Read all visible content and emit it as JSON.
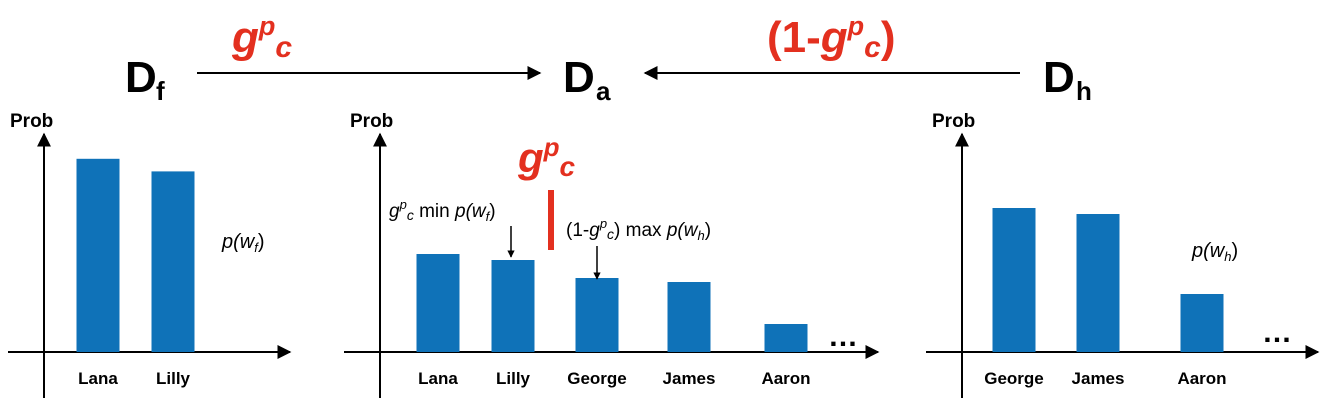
{
  "colors": {
    "bar": "#0f72b8",
    "accent": "#e3301f",
    "ink": "#000000"
  },
  "top": {
    "left_node": "D",
    "left_node_sub": "f",
    "center_node": "D",
    "center_node_sub": "a",
    "right_node": "D",
    "right_node_sub": "h",
    "left_weight": {
      "g": "g",
      "p": "p",
      "c": "c"
    },
    "right_weight": {
      "open": "(1-",
      "g": "g",
      "p": "p",
      "c": "c",
      "close": ")"
    }
  },
  "chart_data": [
    {
      "type": "bar",
      "ylabel": "Prob",
      "categories": [
        "Lana",
        "Lilly"
      ],
      "values": [
        0.92,
        0.86
      ],
      "annotation": {
        "p": "p(",
        "w": "w",
        "sub": "f",
        "close": ")"
      }
    },
    {
      "type": "bar",
      "ylabel": "Prob",
      "categories": [
        "Lana",
        "Lilly",
        "George",
        "James",
        "Aaron"
      ],
      "values": [
        0.49,
        0.46,
        0.37,
        0.35,
        0.14
      ],
      "ellipsis": "…",
      "gap_label": {
        "g": "g",
        "p": "p",
        "c": "c"
      },
      "lower_annotation": {
        "g": "g",
        "p": "p",
        "c": "c",
        "text": " min ",
        "pfx": "p(",
        "w": "w",
        "sub": "f",
        "close": ")"
      },
      "upper_annotation": {
        "open": "(1-",
        "g": "g",
        "p": "p",
        "c": "c",
        "close": ")",
        "text": " max ",
        "pfx": "p(",
        "w": "w",
        "sub": "h",
        "close2": ")"
      }
    },
    {
      "type": "bar",
      "ylabel": "Prob",
      "categories": [
        "George",
        "James",
        "Aaron"
      ],
      "values": [
        0.72,
        0.69,
        0.29
      ],
      "ellipsis": "…",
      "annotation": {
        "p": "p(",
        "w": "w",
        "sub": "h",
        "close": ")"
      }
    }
  ]
}
